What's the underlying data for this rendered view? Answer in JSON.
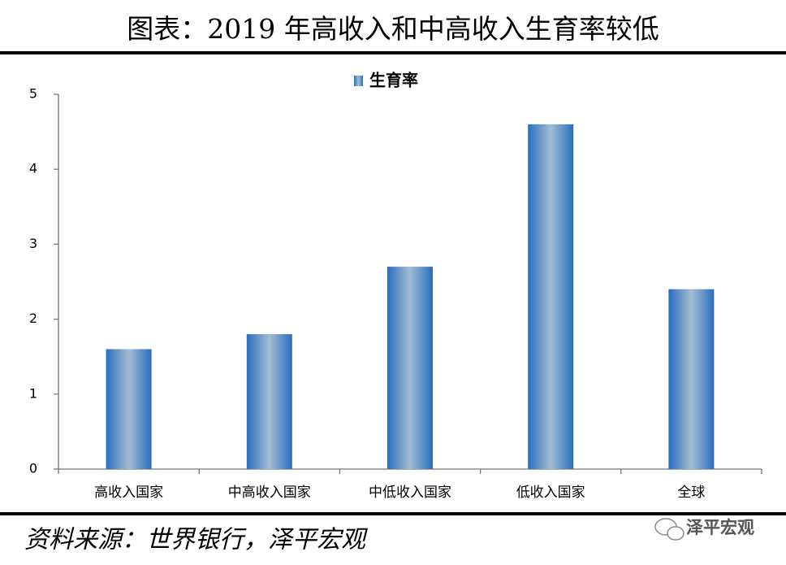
{
  "chart_data": {
    "type": "bar",
    "title": "图表：2019 年高收入和中高收入生育率较低",
    "categories": [
      "高收入国家",
      "中高收入国家",
      "中低收入国家",
      "低收入国家",
      "全球"
    ],
    "series": [
      {
        "name": "生育率",
        "color": "#2a6ebf",
        "values": [
          1.6,
          1.8,
          2.7,
          4.6,
          2.4
        ]
      }
    ],
    "ylim": [
      0,
      5
    ],
    "yticks": [
      0,
      1,
      2,
      3,
      4,
      5
    ],
    "grid": false,
    "legend": "top"
  },
  "footer": {
    "source": "资料来源：世界银行，泽平宏观",
    "watermark": "泽平宏观"
  }
}
